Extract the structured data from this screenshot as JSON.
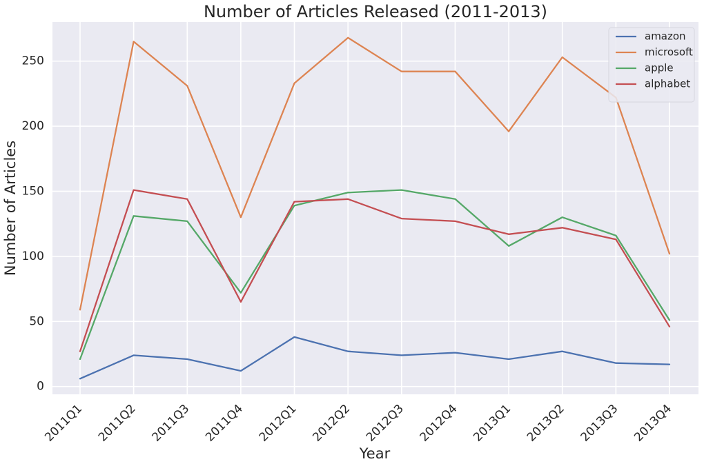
{
  "chart_data": {
    "type": "line",
    "title": "Number of Articles Released (2011-2013)",
    "xlabel": "Year",
    "ylabel": "Number of Articles",
    "categories": [
      "2011Q1",
      "2011Q2",
      "2011Q3",
      "2011Q4",
      "2012Q1",
      "2012Q2",
      "2012Q3",
      "2012Q4",
      "2013Q1",
      "2013Q2",
      "2013Q3",
      "2013Q4"
    ],
    "yticks": [
      0,
      50,
      100,
      150,
      200,
      250
    ],
    "ylim": [
      -6,
      280
    ],
    "grid": true,
    "legend_position": "top-right",
    "series": [
      {
        "name": "amazon",
        "color": "#4c72b0",
        "values": [
          6,
          24,
          21,
          12,
          38,
          27,
          24,
          26,
          21,
          27,
          18,
          17
        ]
      },
      {
        "name": "microsoft",
        "color": "#dd8452",
        "values": [
          59,
          265,
          231,
          130,
          233,
          268,
          242,
          242,
          196,
          253,
          222,
          102
        ]
      },
      {
        "name": "apple",
        "color": "#55a868",
        "values": [
          21,
          131,
          127,
          72,
          139,
          149,
          151,
          144,
          108,
          130,
          116,
          51
        ]
      },
      {
        "name": "alphabet",
        "color": "#c44e52",
        "values": [
          27,
          151,
          144,
          65,
          142,
          144,
          129,
          127,
          117,
          122,
          113,
          46
        ]
      }
    ]
  }
}
